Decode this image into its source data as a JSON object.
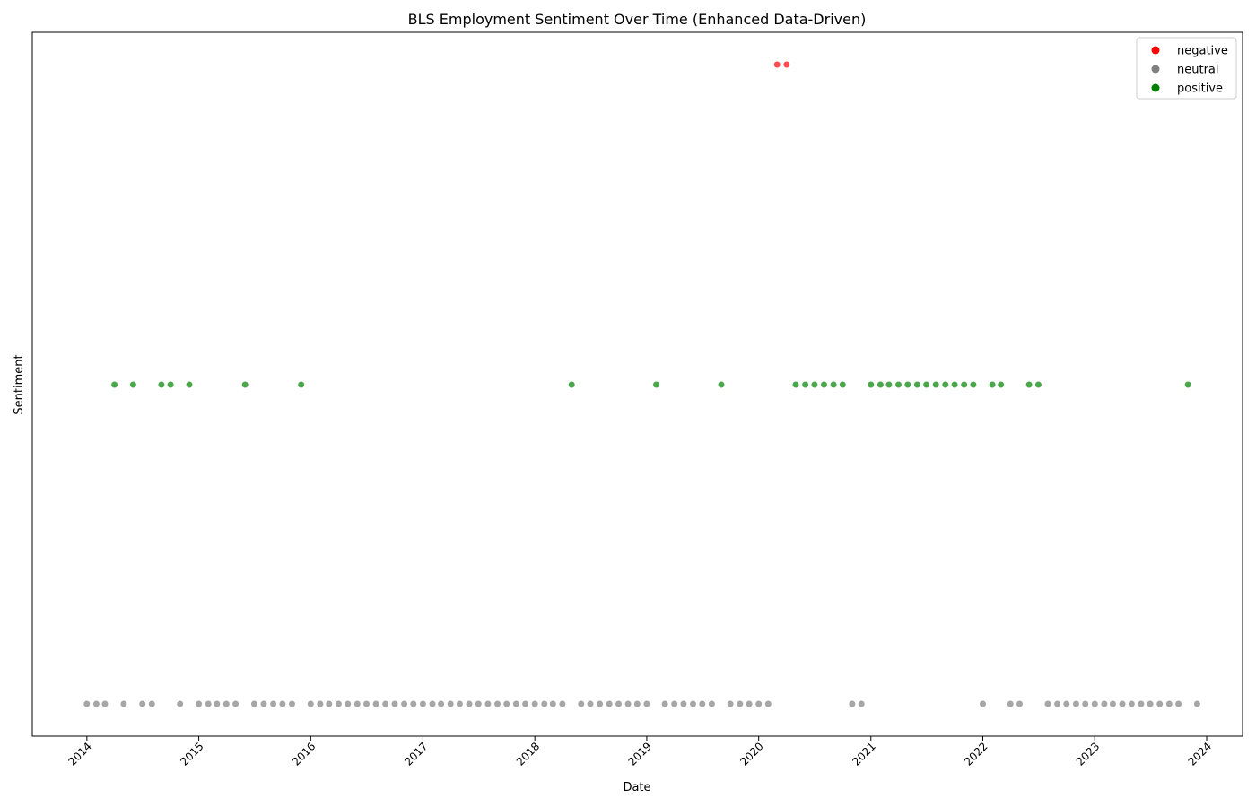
{
  "chart_data": {
    "type": "scatter",
    "title": "BLS Employment Sentiment Over Time (Enhanced Data-Driven)",
    "xlabel": "Date",
    "ylabel": "Sentiment",
    "x_ticks": [
      "2014",
      "2015",
      "2016",
      "2017",
      "2018",
      "2019",
      "2020",
      "2021",
      "2022",
      "2023",
      "2024"
    ],
    "x_range": [
      "2013-07-07",
      "2024-04-27"
    ],
    "y_categories": [
      "neutral",
      "positive",
      "negative"
    ],
    "grid": false,
    "legend_position": "top-right",
    "series": [
      {
        "name": "negative",
        "color": "#ff0000",
        "dates": [
          "2020-03",
          "2020-04"
        ]
      },
      {
        "name": "neutral",
        "color": "#808080",
        "dates": [
          "2014-01",
          "2014-02",
          "2014-03",
          "2014-05",
          "2014-07",
          "2014-08",
          "2014-11",
          "2015-01",
          "2015-02",
          "2015-03",
          "2015-04",
          "2015-05",
          "2015-07",
          "2015-08",
          "2015-09",
          "2015-10",
          "2015-11",
          "2016-01",
          "2016-02",
          "2016-03",
          "2016-04",
          "2016-05",
          "2016-06",
          "2016-07",
          "2016-08",
          "2016-09",
          "2016-10",
          "2016-11",
          "2016-12",
          "2017-01",
          "2017-02",
          "2017-03",
          "2017-04",
          "2017-05",
          "2017-06",
          "2017-07",
          "2017-08",
          "2017-09",
          "2017-10",
          "2017-11",
          "2017-12",
          "2018-01",
          "2018-02",
          "2018-03",
          "2018-04",
          "2018-06",
          "2018-07",
          "2018-08",
          "2018-09",
          "2018-10",
          "2018-11",
          "2018-12",
          "2019-01",
          "2019-03",
          "2019-04",
          "2019-05",
          "2019-06",
          "2019-07",
          "2019-08",
          "2019-10",
          "2019-11",
          "2019-12",
          "2020-01",
          "2020-02",
          "2020-11",
          "2020-12",
          "2022-01",
          "2022-04",
          "2022-05",
          "2022-08",
          "2022-09",
          "2022-10",
          "2022-11",
          "2022-12",
          "2023-01",
          "2023-02",
          "2023-03",
          "2023-04",
          "2023-05",
          "2023-06",
          "2023-07",
          "2023-08",
          "2023-09",
          "2023-10",
          "2023-12"
        ]
      },
      {
        "name": "positive",
        "color": "#008000",
        "dates": [
          "2014-04",
          "2014-06",
          "2014-09",
          "2014-10",
          "2014-12",
          "2015-06",
          "2015-12",
          "2018-05",
          "2019-02",
          "2019-09",
          "2020-05",
          "2020-06",
          "2020-07",
          "2020-08",
          "2020-09",
          "2020-10",
          "2021-01",
          "2021-02",
          "2021-03",
          "2021-04",
          "2021-05",
          "2021-06",
          "2021-07",
          "2021-08",
          "2021-09",
          "2021-10",
          "2021-11",
          "2021-12",
          "2022-02",
          "2022-03",
          "2022-06",
          "2022-07",
          "2023-11"
        ]
      }
    ]
  }
}
